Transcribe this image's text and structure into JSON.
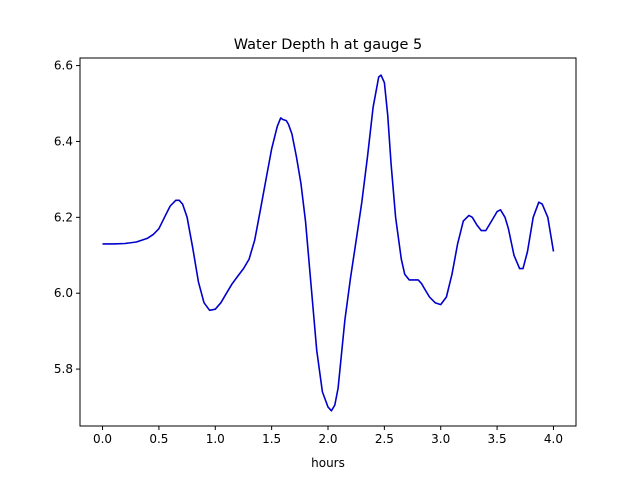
{
  "chart_data": {
    "type": "line",
    "title": "Water Depth h at gauge 5",
    "xlabel": "hours",
    "ylabel": "",
    "xlim": [
      -0.2,
      4.2
    ],
    "ylim": [
      5.65,
      6.62
    ],
    "xticks": [
      0.0,
      0.5,
      1.0,
      1.5,
      2.0,
      2.5,
      3.0,
      3.5,
      4.0
    ],
    "xtick_labels": [
      "0.0",
      "0.5",
      "1.0",
      "1.5",
      "2.0",
      "2.5",
      "3.0",
      "3.5",
      "4.0"
    ],
    "yticks": [
      5.8,
      6.0,
      6.2,
      6.4,
      6.6
    ],
    "ytick_labels": [
      "5.8",
      "6.0",
      "6.2",
      "6.4",
      "6.6"
    ],
    "grid": false,
    "legend": "none",
    "series": [
      {
        "color": "#0000cc",
        "x": [
          0.0,
          0.1,
          0.2,
          0.3,
          0.4,
          0.45,
          0.5,
          0.55,
          0.6,
          0.65,
          0.68,
          0.71,
          0.75,
          0.8,
          0.85,
          0.9,
          0.95,
          1.0,
          1.05,
          1.1,
          1.15,
          1.2,
          1.25,
          1.3,
          1.35,
          1.4,
          1.45,
          1.5,
          1.55,
          1.58,
          1.6,
          1.63,
          1.65,
          1.68,
          1.72,
          1.76,
          1.8,
          1.85,
          1.9,
          1.95,
          2.0,
          2.03,
          2.06,
          2.09,
          2.12,
          2.15,
          2.2,
          2.25,
          2.3,
          2.35,
          2.4,
          2.45,
          2.47,
          2.5,
          2.53,
          2.56,
          2.6,
          2.65,
          2.68,
          2.72,
          2.75,
          2.8,
          2.83,
          2.86,
          2.9,
          2.95,
          3.0,
          3.05,
          3.1,
          3.15,
          3.2,
          3.25,
          3.28,
          3.32,
          3.36,
          3.4,
          3.45,
          3.5,
          3.53,
          3.57,
          3.6,
          3.65,
          3.7,
          3.73,
          3.77,
          3.82,
          3.87,
          3.9,
          3.95,
          4.0
        ],
        "y": [
          6.13,
          6.13,
          6.131,
          6.135,
          6.145,
          6.155,
          6.17,
          6.2,
          6.23,
          6.245,
          6.245,
          6.235,
          6.2,
          6.12,
          6.03,
          5.975,
          5.955,
          5.958,
          5.975,
          6.0,
          6.025,
          6.045,
          6.065,
          6.09,
          6.14,
          6.22,
          6.3,
          6.38,
          6.44,
          6.462,
          6.458,
          6.455,
          6.445,
          6.42,
          6.36,
          6.29,
          6.19,
          6.02,
          5.85,
          5.74,
          5.7,
          5.69,
          5.705,
          5.75,
          5.84,
          5.93,
          6.04,
          6.14,
          6.24,
          6.36,
          6.49,
          6.57,
          6.575,
          6.555,
          6.47,
          6.34,
          6.2,
          6.09,
          6.05,
          6.035,
          6.035,
          6.035,
          6.025,
          6.01,
          5.99,
          5.975,
          5.97,
          5.99,
          6.05,
          6.13,
          6.19,
          6.205,
          6.2,
          6.18,
          6.165,
          6.165,
          6.19,
          6.215,
          6.22,
          6.2,
          6.17,
          6.1,
          6.065,
          6.065,
          6.11,
          6.2,
          6.24,
          6.235,
          6.2,
          6.11
        ]
      }
    ]
  }
}
